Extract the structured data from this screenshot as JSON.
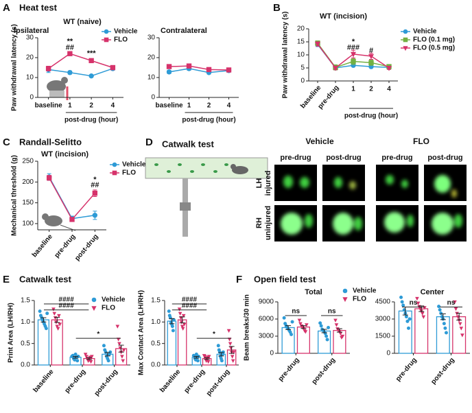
{
  "panel_labels": [
    "A",
    "B",
    "C",
    "D",
    "E",
    "F"
  ],
  "catwalk": {
    "title": "Catwalk test",
    "groups": [
      "Vehicle",
      "FLO"
    ],
    "columns": [
      "pre-drug",
      "post-drug",
      "pre-drug",
      "post-drug"
    ],
    "rows": [
      [
        "LH",
        "injured"
      ],
      [
        "RH",
        "uninjured"
      ]
    ]
  },
  "chart_data": [
    {
      "type": "line",
      "panel_title": "Heat test",
      "subtitle": "WT (naive)",
      "title": "Ipsilateral",
      "ylabel": "Paw withdrawal latency (s)",
      "xlabel": "post-drug (hour)",
      "categories": [
        "baseline",
        "1",
        "2",
        "4"
      ],
      "ylim": [
        0,
        30
      ],
      "yticks": [
        0,
        10,
        20,
        30
      ],
      "legend": true,
      "series": [
        {
          "name": "Vehicle",
          "color": "#2e9bd6",
          "marker": "circle",
          "values": [
            14,
            12.5,
            10.8,
            14.5
          ],
          "errors": [
            1.5,
            0.8,
            0.6,
            0.8
          ]
        },
        {
          "name": "FLO",
          "color": "#d6336b",
          "marker": "square",
          "values": [
            14.5,
            22,
            18.5,
            15
          ],
          "errors": [
            1.2,
            1,
            0.9,
            0.8
          ]
        }
      ],
      "annotations": [
        {
          "text": "**",
          "category": 1,
          "y": 28
        },
        {
          "text": "##",
          "category": 1,
          "y": 25
        },
        {
          "text": "***",
          "category": 2,
          "y": 22
        }
      ]
    },
    {
      "type": "line",
      "title": "Contralateral",
      "xlabel": "post-drug (hour)",
      "categories": [
        "baseline",
        "1",
        "2",
        "4"
      ],
      "ylim": [
        0,
        30
      ],
      "yticks": [
        0,
        10,
        20,
        30
      ],
      "legend": false,
      "series": [
        {
          "color": "#2e9bd6",
          "marker": "circle",
          "values": [
            12.8,
            14.5,
            12.5,
            13.5
          ],
          "errors": [
            0.8,
            0.9,
            0.7,
            0.6
          ]
        },
        {
          "color": "#d6336b",
          "marker": "square",
          "values": [
            15.5,
            15.8,
            14,
            13.8
          ],
          "errors": [
            1,
            1,
            0.8,
            0.6
          ]
        }
      ]
    },
    {
      "type": "line",
      "subtitle": "WT (incision)",
      "ylabel": "Paw withdrawal latency (s)",
      "xlabel": "post-drug (hour)",
      "categories": [
        "baseline",
        "pre-drug",
        "1",
        "2",
        "4"
      ],
      "ylim": [
        0,
        20
      ],
      "yticks": [
        0,
        5,
        10,
        15,
        20
      ],
      "legend": true,
      "series": [
        {
          "name": "Vehicle",
          "color": "#2e9bd6",
          "marker": "circle",
          "values": [
            14,
            5,
            6,
            5.5,
            5.2
          ],
          "errors": [
            0.8,
            0.6,
            0.5,
            0.5,
            0.5
          ]
        },
        {
          "name": "FLO (0.1 mg)",
          "color": "#72b043",
          "marker": "square",
          "values": [
            14.5,
            5.2,
            7.5,
            7,
            5.5
          ],
          "errors": [
            0.9,
            1,
            1.2,
            1,
            0.8
          ]
        },
        {
          "name": "FLO (0.5 mg)",
          "color": "#d6336b",
          "marker": "triangle",
          "values": [
            14.2,
            5,
            10.3,
            9.5,
            5
          ],
          "errors": [
            0.8,
            0.7,
            1.5,
            1.2,
            0.6
          ]
        }
      ],
      "annotations": [
        {
          "text": "*",
          "category": 2,
          "y": 15
        },
        {
          "text": "###",
          "category": 2,
          "y": 12.8
        },
        {
          "text": "#",
          "category": 3,
          "y": 11.5
        }
      ]
    },
    {
      "type": "line",
      "panel_title": "Randall-Selitto",
      "subtitle": "WT (incision)",
      "ylabel": "Mechanical threshold (g)",
      "categories": [
        "baseline",
        "pre-drug",
        "post-drug"
      ],
      "ylim": [
        85,
        250
      ],
      "yticks": [
        100,
        150,
        200,
        250
      ],
      "legend": true,
      "series": [
        {
          "name": "Vehicle",
          "color": "#2e9bd6",
          "marker": "circle",
          "values": [
            212,
            112,
            120
          ],
          "errors": [
            8,
            6,
            10
          ]
        },
        {
          "name": "FLO",
          "color": "#d6336b",
          "marker": "square",
          "values": [
            210,
            110,
            173
          ],
          "errors": [
            6,
            5,
            8
          ]
        }
      ],
      "annotations": [
        {
          "text": "*",
          "category": 2,
          "y": 205
        },
        {
          "text": "##",
          "category": 2,
          "y": 192
        }
      ]
    },
    {
      "type": "bar",
      "panel_title": "Catwalk test",
      "ylabel": "Print Area (LH/RH)",
      "categories": [
        "baseline",
        "pre-drug",
        "post-drug"
      ],
      "ylim": [
        0,
        1.5
      ],
      "yticks": [
        {
          "value": 0,
          "label": "0.0"
        },
        {
          "value": 0.5,
          "label": "0.5"
        },
        {
          "value": 1,
          "label": "1.0"
        },
        {
          "value": 1.5,
          "label": "1.5"
        }
      ],
      "legend": true,
      "series": [
        {
          "name": "Vehicle",
          "color": "#2e9bd6",
          "marker": "circle",
          "values": [
            1.05,
            0.18,
            0.25
          ],
          "errors": [
            0.05,
            0.02,
            0.04
          ],
          "points": [
            [
              1.25,
              1.15,
              1.1,
              1.05,
              1,
              0.95,
              0.9,
              0.85,
              1.2
            ],
            [
              0.2,
              0.22,
              0.15,
              0.12,
              0.25,
              0.18,
              0.1,
              0.2
            ],
            [
              0.45,
              0.35,
              0.3,
              0.2,
              0.15,
              0.1,
              0.25,
              0.3
            ]
          ]
        },
        {
          "name": "FLO",
          "color": "#d6336b",
          "marker": "triangle",
          "values": [
            1.05,
            0.15,
            0.38
          ],
          "errors": [
            0.06,
            0.02,
            0.08
          ],
          "points": [
            [
              1.3,
              1.2,
              1.1,
              1,
              0.9,
              0.85,
              1.15,
              0.95
            ],
            [
              0.25,
              0.2,
              0.15,
              0.1,
              0.12,
              0.18,
              0.08,
              0.2
            ],
            [
              0.9,
              0.6,
              0.5,
              0.4,
              0.3,
              0.2,
              0.1,
              0.35
            ]
          ]
        }
      ],
      "brackets": [
        {
          "text": "####",
          "from": 0,
          "to": 1,
          "y": 1.42
        },
        {
          "text": "####",
          "from": 0,
          "to": 1,
          "y": 1.28
        },
        {
          "text": "*",
          "from": 1,
          "to": 2,
          "y": 0.62
        }
      ]
    },
    {
      "type": "bar",
      "ylabel": "Max Contact Area (LH/RH)",
      "categories": [
        "baseline",
        "pre-drug",
        "post-drug"
      ],
      "ylim": [
        0,
        1.5
      ],
      "yticks": [
        {
          "value": 0,
          "label": "0.0"
        },
        {
          "value": 0.5,
          "label": "0.5"
        },
        {
          "value": 1,
          "label": "1.0"
        },
        {
          "value": 1.5,
          "label": "1.5"
        }
      ],
      "legend": false,
      "series": [
        {
          "color": "#2e9bd6",
          "marker": "circle",
          "values": [
            1.02,
            0.18,
            0.25
          ],
          "errors": [
            0.06,
            0.02,
            0.04
          ],
          "points": [
            [
              1.25,
              1.15,
              1.1,
              1,
              0.95,
              0.9,
              0.8,
              1.05
            ],
            [
              0.22,
              0.2,
              0.15,
              0.12,
              0.25,
              0.18,
              0.1,
              0.2
            ],
            [
              0.45,
              0.35,
              0.3,
              0.2,
              0.15,
              0.1,
              0.25,
              0.3
            ]
          ]
        },
        {
          "color": "#d6336b",
          "marker": "triangle",
          "values": [
            1.05,
            0.15,
            0.35
          ],
          "errors": [
            0.07,
            0.02,
            0.08
          ],
          "points": [
            [
              1.3,
              1.2,
              1.1,
              1,
              0.9,
              0.85,
              1.15,
              0.95
            ],
            [
              0.22,
              0.2,
              0.15,
              0.1,
              0.12,
              0.18,
              0.08,
              0.2
            ],
            [
              0.8,
              0.6,
              0.5,
              0.4,
              0.3,
              0.2,
              0.1,
              0.3
            ]
          ]
        }
      ],
      "brackets": [
        {
          "text": "####",
          "from": 0,
          "to": 1,
          "y": 1.42
        },
        {
          "text": "####",
          "from": 0,
          "to": 1,
          "y": 1.28
        },
        {
          "text": "*",
          "from": 1,
          "to": 2,
          "y": 0.62
        }
      ]
    },
    {
      "type": "bar",
      "panel_title": "Open field test",
      "title": "Total",
      "ylabel": "Beam breaks/30 min",
      "categories": [
        "pre-drug",
        "post-drug"
      ],
      "ylim": [
        0,
        9000
      ],
      "yticks": [
        0,
        3000,
        6000,
        9000
      ],
      "legend": true,
      "series": [
        {
          "name": "Vehicle",
          "color": "#2e9bd6",
          "marker": "circle",
          "values": [
            4500,
            3900
          ],
          "errors": [
            350,
            300
          ],
          "points": [
            [
              6200,
              5200,
              4800,
              4500,
              4300,
              4000,
              3700,
              3300,
              5500
            ],
            [
              5300,
              4800,
              4200,
              4000,
              3800,
              3500,
              3000,
              2400,
              4500
            ]
          ]
        },
        {
          "name": "FLO",
          "color": "#d6336b",
          "marker": "triangle",
          "values": [
            4600,
            4000
          ],
          "errors": [
            250,
            300
          ],
          "points": [
            [
              5800,
              5200,
              4800,
              4600,
              4400,
              4000,
              3800,
              5000
            ],
            [
              5800,
              5000,
              4300,
              4000,
              3800,
              3500,
              2800,
              3000
            ]
          ]
        }
      ],
      "brackets": [
        {
          "text": "ns",
          "from": 0,
          "to": 0,
          "y": 6600
        },
        {
          "text": "ns",
          "from": 1,
          "to": 1,
          "y": 6600
        }
      ]
    },
    {
      "type": "bar",
      "title": "Center",
      "categories": [
        "pre-drug",
        "post-drug"
      ],
      "ylim": [
        0,
        4500
      ],
      "yticks": [
        0,
        1500,
        3000,
        4500
      ],
      "legend": false,
      "series": [
        {
          "color": "#2e9bd6",
          "marker": "circle",
          "values": [
            3700,
            3200
          ],
          "errors": [
            350,
            250
          ],
          "points": [
            [
              4900,
              4500,
              4200,
              3800,
              3500,
              3200,
              2800,
              2200,
              3000
            ],
            [
              4100,
              3800,
              3500,
              3200,
              3000,
              2600,
              2200,
              1800
            ]
          ]
        },
        {
          "color": "#d6336b",
          "marker": "triangle",
          "values": [
            3900,
            3200
          ],
          "errors": [
            250,
            300
          ],
          "points": [
            [
              4800,
              4400,
              4100,
              3900,
              3700,
              3500,
              3200,
              4000
            ],
            [
              4500,
              3900,
              3500,
              3200,
              2900,
              2600,
              2200,
              1600
            ]
          ]
        }
      ],
      "brackets": [
        {
          "text": "ns",
          "from": 0,
          "to": 0,
          "y": 4050
        },
        {
          "text": "ns",
          "from": 1,
          "to": 1,
          "y": 4050
        }
      ]
    }
  ]
}
